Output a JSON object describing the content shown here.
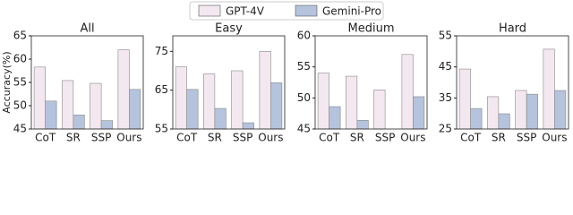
{
  "chart_data": [
    {
      "type": "bar",
      "title": "All",
      "ylabel": "Accuracy(%)",
      "categories": [
        "CoT",
        "SR",
        "SSP",
        "Ours"
      ],
      "series": [
        {
          "name": "GPT-4V",
          "color": "#f4e8f0",
          "values": [
            58.3,
            55.4,
            54.8,
            62
          ]
        },
        {
          "name": "Gemini-Pro",
          "color": "#b5c3dd",
          "values": [
            51,
            48,
            46.8,
            53.5
          ]
        }
      ],
      "ylim": [
        45,
        65
      ],
      "yticks": [
        45,
        50,
        55,
        60,
        65
      ]
    },
    {
      "type": "bar",
      "title": "Easy",
      "categories": [
        "CoT",
        "SR",
        "SSP",
        "Ours"
      ],
      "series": [
        {
          "color": "#f4e8f0",
          "values": [
            71,
            69.2,
            70,
            75
          ]
        },
        {
          "color": "#b5c3dd",
          "values": [
            65.2,
            60.3,
            56.6,
            66.9
          ]
        }
      ],
      "ylim": [
        55,
        79
      ],
      "yticks": [
        55,
        65,
        75
      ]
    },
    {
      "type": "bar",
      "title": "Medium",
      "categories": [
        "CoT",
        "SR",
        "SSP",
        "Ours"
      ],
      "series": [
        {
          "color": "#f4e8f0",
          "values": [
            54,
            53.5,
            51.3,
            57
          ]
        },
        {
          "color": "#b5c3dd",
          "values": [
            48.6,
            46.4,
            null,
            50.2
          ]
        }
      ],
      "ylim": [
        45,
        60
      ],
      "yticks": [
        45,
        50,
        55,
        60
      ]
    },
    {
      "type": "bar",
      "title": "Hard",
      "categories": [
        "CoT",
        "SR",
        "SSP",
        "Ours"
      ],
      "series": [
        {
          "color": "#f4e8f0",
          "values": [
            44.3,
            35.4,
            37.4,
            50.7
          ]
        },
        {
          "color": "#b5c3dd",
          "values": [
            31.6,
            29.9,
            36.2,
            37.4
          ]
        }
      ],
      "ylim": [
        25,
        55
      ],
      "yticks": [
        25,
        35,
        45,
        55
      ]
    }
  ]
}
